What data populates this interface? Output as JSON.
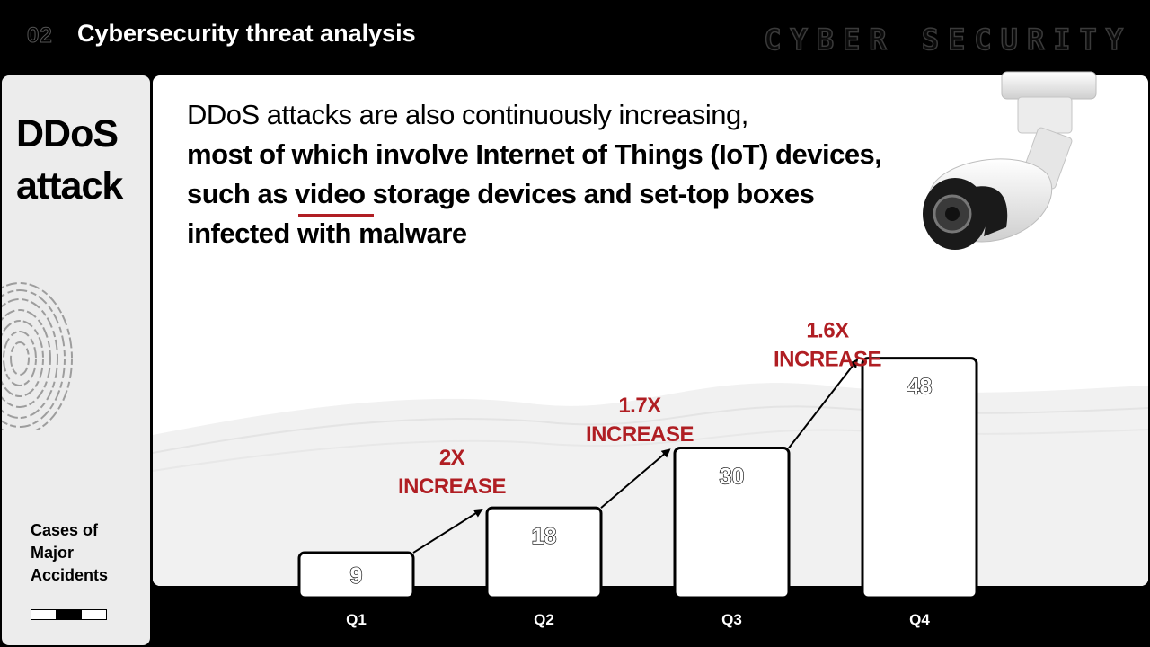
{
  "header": {
    "section_number": "02",
    "title": "Cybersecurity threat analysis",
    "watermark": "CYBER SECURITY"
  },
  "sidebar": {
    "title_line1": "DDoS",
    "title_line2": "attack",
    "caption_line1": "Cases of",
    "caption_line2": "Major",
    "caption_line3": "Accidents",
    "pager": {
      "total": 3,
      "active_index": 1
    }
  },
  "intro": {
    "line1": "DDoS attacks are also continuously increasing,",
    "line2": "most of which involve Internet of Things (IoT) devices,",
    "line3": "such as video storage devices and set-top boxes",
    "line4": "infected with malware"
  },
  "colors": {
    "accent": "#b01e23",
    "background": "#000000",
    "panel": "#ffffff"
  },
  "chart_data": {
    "type": "bar",
    "categories": [
      "Q1",
      "Q2",
      "Q3",
      "Q4"
    ],
    "values": [
      9,
      18,
      30,
      48
    ],
    "value_labels": [
      "9",
      "18",
      "30",
      "48"
    ],
    "title": "",
    "xlabel": "",
    "ylabel": "",
    "ylim": [
      0,
      50
    ],
    "grid": false,
    "annotations": [
      {
        "from": "Q1",
        "to": "Q2",
        "line1": "2X",
        "line2": "INCREASE"
      },
      {
        "from": "Q2",
        "to": "Q3",
        "line1": "1.7X",
        "line2": "INCREASE"
      },
      {
        "from": "Q3",
        "to": "Q4",
        "line1": "1.6X",
        "line2": "INCREASE"
      }
    ]
  }
}
